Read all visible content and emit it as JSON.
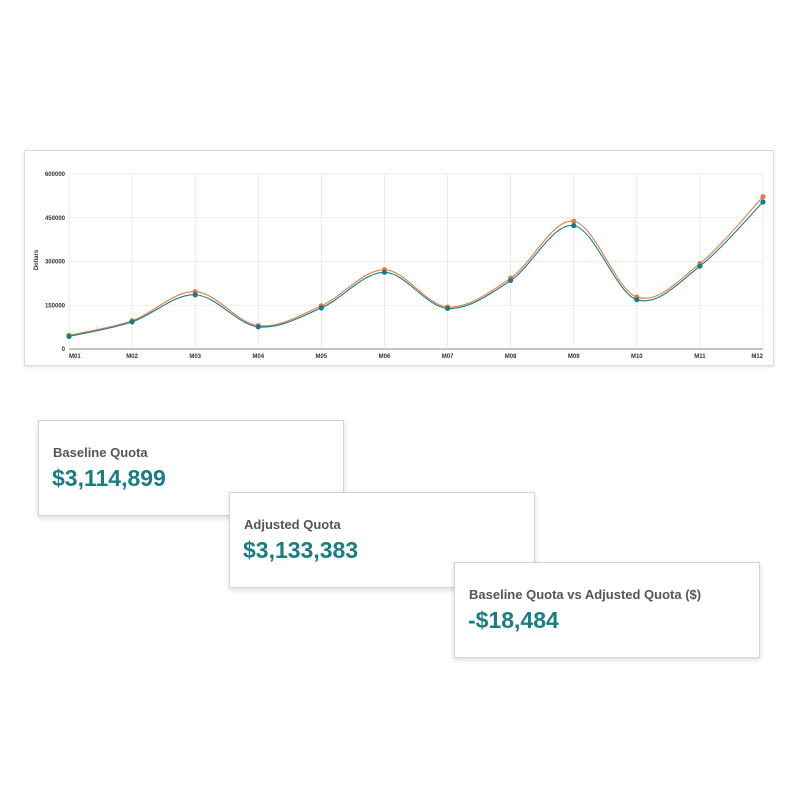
{
  "chart_data": {
    "type": "line",
    "categories": [
      "M01",
      "M02",
      "M03",
      "M04",
      "M05",
      "M06",
      "M07",
      "M08",
      "M09",
      "M10",
      "M11",
      "M12"
    ],
    "series": [
      {
        "values": [
          47000,
          97000,
          197000,
          80000,
          148000,
          272000,
          144000,
          243000,
          438000,
          178000,
          293000,
          522000
        ],
        "color": "#e07b47"
      },
      {
        "values": [
          43000,
          93000,
          186000,
          76000,
          141000,
          263000,
          139000,
          235000,
          423000,
          169000,
          284000,
          504000
        ],
        "color": "#1b7c84"
      }
    ],
    "ylabel": "Dollars",
    "ylim": [
      0,
      600000
    ],
    "yticks": [
      "0",
      "150000",
      "300000",
      "450000",
      "600000"
    ],
    "yticks_values": [
      0,
      150000,
      300000,
      450000,
      600000
    ],
    "grid": true
  },
  "cards": {
    "baseline": {
      "label": "Baseline Quota",
      "value": "$3,114,899"
    },
    "adjusted": {
      "label": "Adjusted Quota",
      "value": "$3,133,383"
    },
    "difference": {
      "label": "Baseline Quota vs Adjusted Quota ($)",
      "value": "-$18,484"
    }
  },
  "colors": {
    "accent": "#1b7c84",
    "secondary": "#e07b47",
    "label": "#555555"
  }
}
